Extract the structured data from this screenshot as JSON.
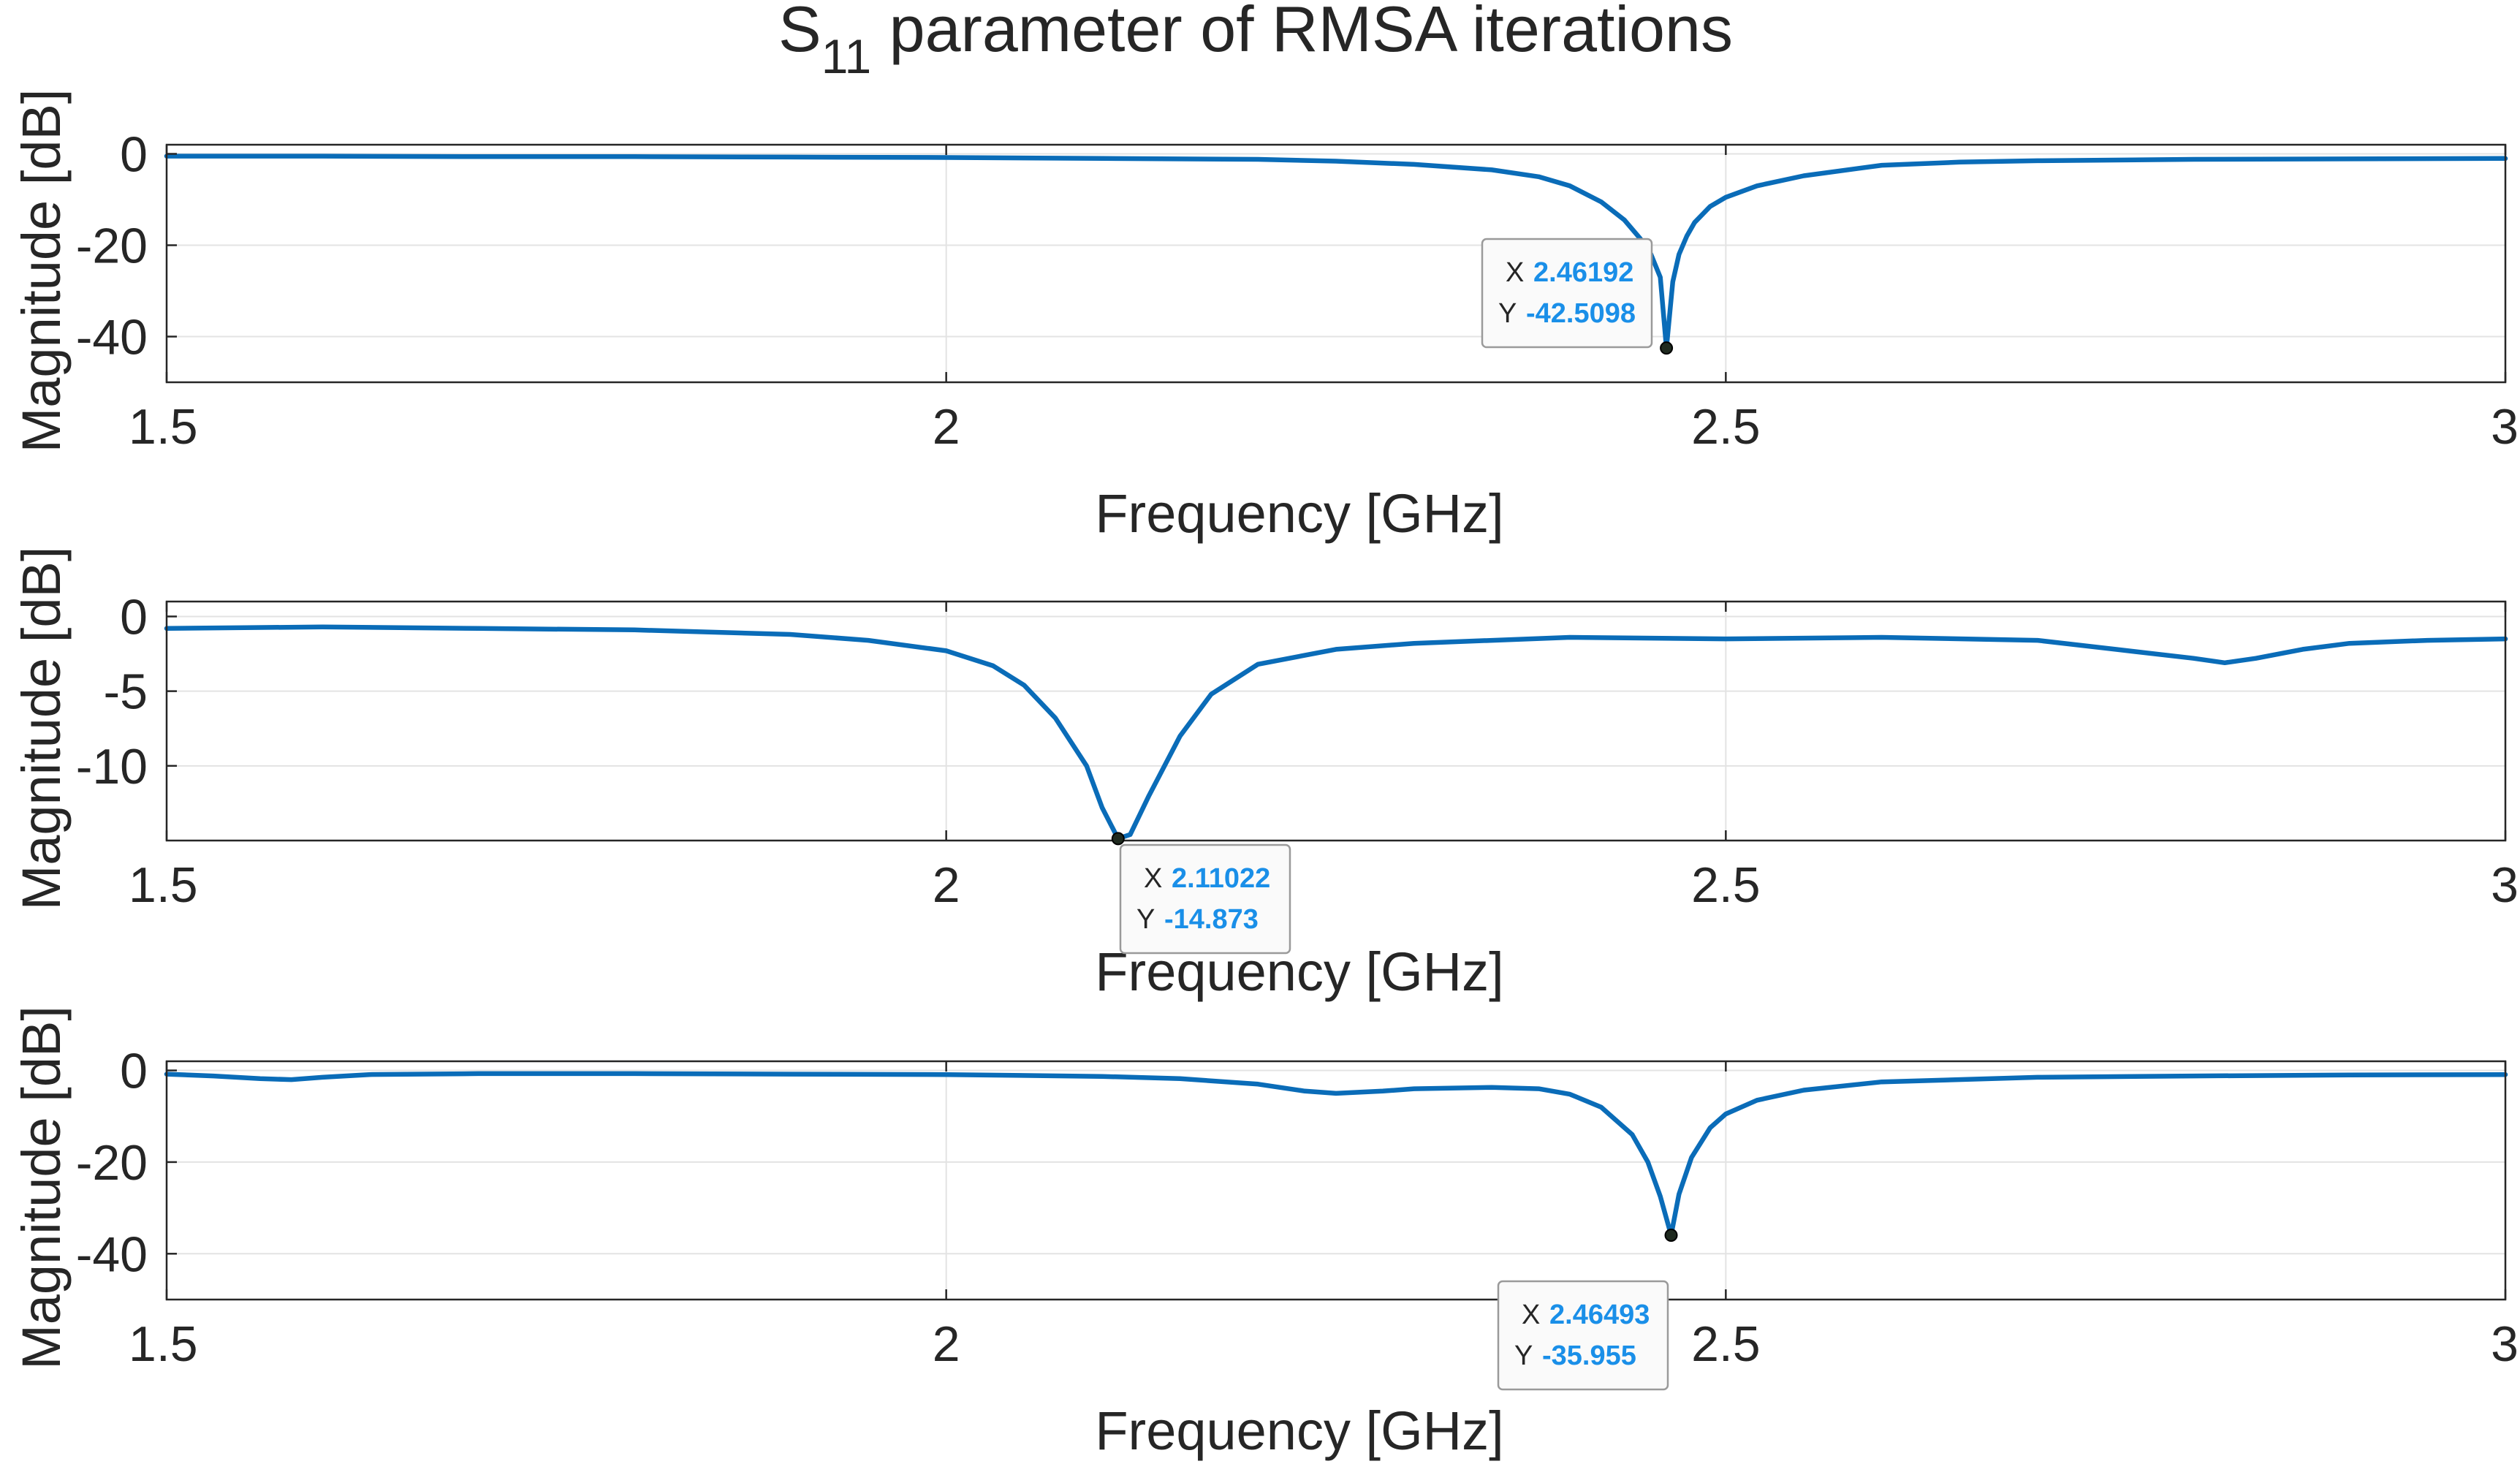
{
  "chart_data": {
    "title": "S",
    "title_subscript": "11",
    "title_suffix": " parameter of RMSA iterations",
    "panels": [
      {
        "type": "line",
        "xlabel": "Frequency [GHz]",
        "ylabel": "Magnitude [dB]",
        "xlim": [
          1.5,
          3
        ],
        "ylim": [
          -50,
          2
        ],
        "xticks": [
          1.5,
          2,
          2.5,
          3
        ],
        "xtick_labels": [
          "1.5",
          "2",
          "2.5",
          "3"
        ],
        "yticks": [
          0,
          -20,
          -40
        ],
        "ytick_labels": [
          "0",
          "-20",
          "-40"
        ],
        "grid": true,
        "series": [
          {
            "color": "#0a6cb8",
            "x": [
              1.5,
              1.6,
              1.7,
              1.8,
              1.9,
              2.0,
              2.1,
              2.2,
              2.25,
              2.3,
              2.35,
              2.38,
              2.4,
              2.42,
              2.435,
              2.445,
              2.452,
              2.458,
              2.46192,
              2.466,
              2.47,
              2.475,
              2.48,
              2.49,
              2.5,
              2.52,
              2.55,
              2.6,
              2.65,
              2.7,
              2.8,
              2.9,
              3.0
            ],
            "y": [
              -0.5,
              -0.5,
              -0.6,
              -0.6,
              -0.7,
              -0.8,
              -1.0,
              -1.2,
              -1.6,
              -2.3,
              -3.5,
              -5.0,
              -7.0,
              -10.5,
              -14.5,
              -18.5,
              -22.0,
              -27.0,
              -42.5098,
              -28.0,
              -22.0,
              -18.0,
              -15.0,
              -11.5,
              -9.5,
              -7.0,
              -4.8,
              -2.5,
              -1.8,
              -1.5,
              -1.2,
              -1.1,
              -1.0
            ]
          }
        ],
        "datatip": {
          "x_key": "X",
          "x_value": "2.46192",
          "y_key": "Y",
          "y_value": "-42.5098",
          "px": 2.46192,
          "py": -42.5098
        }
      },
      {
        "type": "line",
        "xlabel": "Frequency [GHz]",
        "ylabel": "Magnitude [dB]",
        "xlim": [
          1.5,
          3
        ],
        "ylim": [
          -15,
          1
        ],
        "xticks": [
          1.5,
          2,
          2.5,
          3
        ],
        "xtick_labels": [
          "1.5",
          "2",
          "2.5",
          "3"
        ],
        "yticks": [
          0,
          -5,
          -10
        ],
        "ytick_labels": [
          "0",
          "-5",
          "-10"
        ],
        "grid": true,
        "series": [
          {
            "color": "#0a6cb8",
            "x": [
              1.5,
              1.55,
              1.6,
              1.7,
              1.8,
              1.9,
              1.95,
              2.0,
              2.03,
              2.05,
              2.07,
              2.09,
              2.1,
              2.11022,
              2.118,
              2.13,
              2.15,
              2.17,
              2.2,
              2.25,
              2.3,
              2.4,
              2.5,
              2.6,
              2.7,
              2.75,
              2.8,
              2.82,
              2.84,
              2.87,
              2.9,
              2.95,
              3.0
            ],
            "y": [
              -0.8,
              -0.75,
              -0.7,
              -0.8,
              -0.9,
              -1.2,
              -1.6,
              -2.3,
              -3.3,
              -4.6,
              -6.8,
              -10.0,
              -12.8,
              -14.873,
              -14.6,
              -12.0,
              -8.0,
              -5.2,
              -3.2,
              -2.2,
              -1.8,
              -1.4,
              -1.5,
              -1.4,
              -1.6,
              -2.2,
              -2.8,
              -3.1,
              -2.8,
              -2.2,
              -1.8,
              -1.6,
              -1.5
            ]
          }
        ],
        "datatip": {
          "x_key": "X",
          "x_value": "2.11022",
          "y_key": "Y",
          "y_value": "-14.873",
          "px": 2.11022,
          "py": -14.873
        }
      },
      {
        "type": "line",
        "xlabel": "Frequency [GHz]",
        "ylabel": "Magnitude [dB]",
        "xlim": [
          1.5,
          3
        ],
        "ylim": [
          -50,
          2
        ],
        "xticks": [
          1.5,
          2,
          2.5,
          3
        ],
        "xtick_labels": [
          "1.5",
          "2",
          "2.5",
          "3"
        ],
        "yticks": [
          0,
          -20,
          -40
        ],
        "ytick_labels": [
          "0",
          "-20",
          "-40"
        ],
        "grid": true,
        "series": [
          {
            "color": "#0a6cb8",
            "x": [
              1.5,
              1.53,
              1.56,
              1.58,
              1.6,
              1.63,
              1.7,
              1.8,
              1.9,
              2.0,
              2.1,
              2.15,
              2.2,
              2.23,
              2.25,
              2.28,
              2.3,
              2.35,
              2.38,
              2.4,
              2.42,
              2.44,
              2.45,
              2.458,
              2.46493,
              2.47,
              2.478,
              2.49,
              2.5,
              2.52,
              2.55,
              2.6,
              2.7,
              2.8,
              2.9,
              3.0
            ],
            "y": [
              -0.8,
              -1.2,
              -1.8,
              -2.0,
              -1.5,
              -0.9,
              -0.7,
              -0.7,
              -0.8,
              -0.9,
              -1.3,
              -1.8,
              -3.0,
              -4.5,
              -5.0,
              -4.5,
              -4.0,
              -3.7,
              -4.0,
              -5.2,
              -8.0,
              -14.0,
              -20.0,
              -27.5,
              -35.955,
              -27.0,
              -19.0,
              -12.5,
              -9.5,
              -6.5,
              -4.3,
              -2.5,
              -1.5,
              -1.2,
              -1.0,
              -0.9
            ]
          }
        ],
        "datatip": {
          "x_key": "X",
          "x_value": "2.46493",
          "y_key": "Y",
          "y_value": "-35.955",
          "px": 2.46493,
          "py": -35.955
        }
      }
    ]
  }
}
